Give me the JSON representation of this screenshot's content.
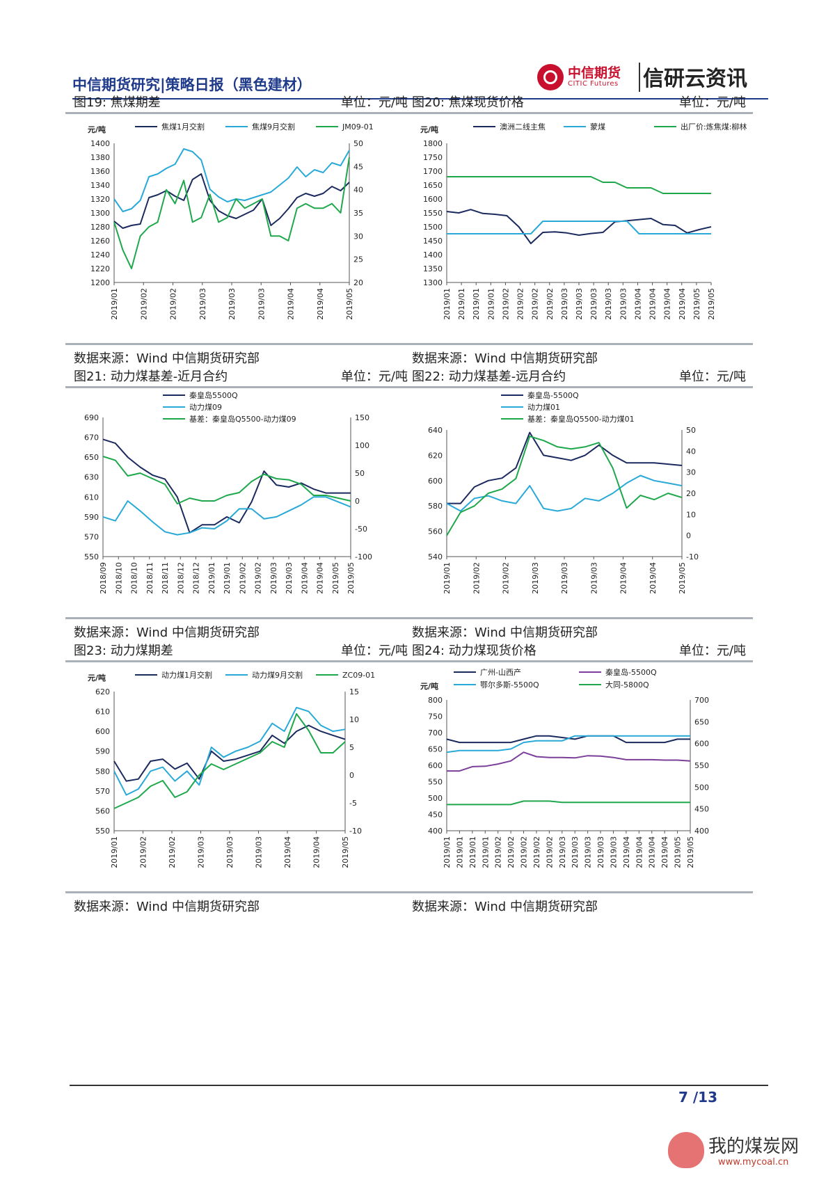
{
  "header": {
    "title": "中信期货研究|策略日报（黑色建材）",
    "logo_cn": "中信期货",
    "logo_en": "CITIC Futures",
    "brand": "信研云资讯"
  },
  "panels": [
    {
      "title": "图19: 焦煤期差",
      "unit": "单位：元/吨",
      "source": "数据来源：Wind  中信期货研究部"
    },
    {
      "title": "图20: 焦煤现货价格",
      "unit": "单位：元/吨",
      "source": "数据来源：Wind  中信期货研究部"
    },
    {
      "title": "图21: 动力煤基差-近月合约",
      "unit": "单位：元/吨",
      "source": "数据来源：Wind  中信期货研究部"
    },
    {
      "title": "图22: 动力煤基差-远月合约",
      "unit": "单位：元/吨",
      "source": "数据来源：Wind  中信期货研究部"
    },
    {
      "title": "图23: 动力煤期差",
      "unit": "单位：元/吨",
      "source": "数据来源：Wind  中信期货研究部"
    },
    {
      "title": "图24: 动力煤现货价格",
      "unit": "单位：元/吨",
      "source": "数据来源：Wind  中信期货研究部"
    }
  ],
  "colors": {
    "navy": "#1b2a5e",
    "cyan": "#29a9d8",
    "green": "#1ea84b",
    "purple": "#7b3f9a"
  },
  "chart_data": [
    {
      "type": "line",
      "yunit": "元/吨",
      "left_axis": {
        "min": 1200,
        "max": 1400,
        "ticks": [
          1200,
          1220,
          1240,
          1260,
          1280,
          1300,
          1320,
          1340,
          1360,
          1380,
          1400
        ]
      },
      "right_axis": {
        "min": 20,
        "max": 50,
        "ticks": [
          20,
          25,
          30,
          35,
          40,
          45,
          50
        ]
      },
      "x_labels": [
        "2019/01",
        "2019/02",
        "2019/02",
        "2019/03",
        "2019/03",
        "2019/03",
        "2019/04",
        "2019/04",
        "2019/05"
      ],
      "series": [
        {
          "name": "焦煤1月交割",
          "color": "navy",
          "axis": "left",
          "values": [
            1288,
            1278,
            1282,
            1284,
            1322,
            1326,
            1332,
            1324,
            1318,
            1348,
            1356,
            1318,
            1303,
            1296,
            1292,
            1298,
            1304,
            1320,
            1282,
            1292,
            1306,
            1322,
            1328,
            1324,
            1328,
            1338,
            1332,
            1344
          ]
        },
        {
          "name": "焦煤9月交割",
          "color": "cyan",
          "axis": "left",
          "values": [
            1320,
            1302,
            1306,
            1318,
            1352,
            1356,
            1364,
            1370,
            1392,
            1388,
            1376,
            1334,
            1323,
            1316,
            1320,
            1318,
            1322,
            1326,
            1330,
            1340,
            1350,
            1366,
            1352,
            1362,
            1358,
            1372,
            1368,
            1390
          ]
        },
        {
          "name": "JM09-01",
          "color": "green",
          "axis": "right",
          "values": [
            33,
            27,
            23,
            30,
            32,
            33,
            40,
            37,
            42,
            33,
            34,
            39,
            33,
            34,
            38,
            36,
            37,
            38,
            30,
            30,
            29,
            36,
            37,
            36,
            36,
            37,
            35,
            47
          ]
        }
      ]
    },
    {
      "type": "line",
      "yunit": "元/吨",
      "left_axis": {
        "min": 1300,
        "max": 1800,
        "ticks": [
          1300,
          1350,
          1400,
          1450,
          1500,
          1550,
          1600,
          1650,
          1700,
          1750,
          1800
        ]
      },
      "x_labels": [
        "2019/01",
        "2019/01",
        "2019/01",
        "2019/01",
        "2019/02",
        "2019/02",
        "2019/02",
        "2019/02",
        "2019/03",
        "2019/03",
        "2019/03",
        "2019/03",
        "2019/03",
        "2019/04",
        "2019/04",
        "2019/04",
        "2019/04",
        "2019/05",
        "2019/05"
      ],
      "series": [
        {
          "name": "澳洲二线主焦",
          "color": "navy",
          "values": [
            1555,
            1550,
            1562,
            1548,
            1545,
            1540,
            1500,
            1440,
            1480,
            1482,
            1478,
            1470,
            1476,
            1480,
            1518,
            1522,
            1526,
            1530,
            1508,
            1505,
            1478,
            1490,
            1500
          ]
        },
        {
          "name": "蒙煤",
          "color": "cyan",
          "values": [
            1475,
            1475,
            1475,
            1475,
            1475,
            1475,
            1475,
            1475,
            1520,
            1520,
            1520,
            1520,
            1520,
            1520,
            1520,
            1520,
            1475,
            1475,
            1475,
            1475,
            1475,
            1475,
            1475
          ]
        },
        {
          "name": "出厂价:炼焦煤:柳林",
          "color": "green",
          "values": [
            1680,
            1680,
            1680,
            1680,
            1680,
            1680,
            1680,
            1680,
            1680,
            1680,
            1680,
            1680,
            1680,
            1660,
            1660,
            1640,
            1640,
            1640,
            1620,
            1620,
            1620,
            1620,
            1620
          ]
        }
      ]
    },
    {
      "type": "line",
      "left_axis": {
        "min": 550,
        "max": 690,
        "ticks": [
          550,
          570,
          590,
          610,
          630,
          650,
          670,
          690
        ]
      },
      "right_axis": {
        "min": -100,
        "max": 150,
        "ticks": [
          -100,
          -50,
          0,
          50,
          100,
          150
        ]
      },
      "x_labels": [
        "2018/09",
        "2018/10",
        "2018/10",
        "2018/11",
        "2018/11",
        "2018/12",
        "2018/12",
        "2019/01",
        "2019/01",
        "2019/02",
        "2019/02",
        "2019/03",
        "2019/03",
        "2019/04",
        "2019/04",
        "2019/05",
        "2019/05"
      ],
      "series": [
        {
          "name": "秦皇岛5500Q",
          "color": "navy",
          "axis": "left",
          "values": [
            668,
            664,
            650,
            640,
            632,
            628,
            610,
            574,
            582,
            582,
            590,
            584,
            605,
            636,
            622,
            620,
            624,
            618,
            614,
            614,
            614
          ]
        },
        {
          "name": "动力煤09",
          "color": "cyan",
          "axis": "left",
          "values": [
            590,
            586,
            606,
            596,
            585,
            575,
            572,
            574,
            579,
            578,
            586,
            598,
            598,
            588,
            590,
            596,
            602,
            610,
            610,
            605,
            600
          ]
        },
        {
          "name": "基差：秦皇岛Q5500-动力煤09",
          "color": "green",
          "axis": "right",
          "values": [
            80,
            73,
            45,
            50,
            40,
            30,
            -5,
            5,
            0,
            0,
            10,
            15,
            35,
            48,
            40,
            38,
            30,
            10,
            10,
            5,
            0
          ]
        }
      ]
    },
    {
      "type": "line",
      "left_axis": {
        "min": 540,
        "max": 640,
        "ticks": [
          540,
          560,
          580,
          600,
          620,
          640
        ]
      },
      "right_axis": {
        "min": -10,
        "max": 50,
        "ticks": [
          -10,
          0,
          10,
          20,
          30,
          40,
          50
        ]
      },
      "x_labels": [
        "2019/01",
        "2019/02",
        "2019/02",
        "2019/03",
        "2019/03",
        "2019/03",
        "2019/04",
        "2019/04",
        "2019/05"
      ],
      "series": [
        {
          "name": "秦皇岛-5500Q",
          "color": "navy",
          "axis": "left",
          "values": [
            582,
            582,
            595,
            600,
            602,
            610,
            638,
            620,
            618,
            616,
            620,
            628,
            620,
            614,
            614,
            614,
            613,
            612
          ]
        },
        {
          "name": "动力煤01",
          "color": "cyan",
          "axis": "left",
          "values": [
            582,
            576,
            586,
            588,
            584,
            582,
            596,
            578,
            576,
            578,
            586,
            584,
            590,
            598,
            604,
            600,
            598,
            596
          ]
        },
        {
          "name": "基差：秦皇岛Q5500-动力煤01",
          "color": "green",
          "axis": "right",
          "values": [
            0,
            11,
            14,
            20,
            22,
            27,
            47,
            45,
            42,
            41,
            42,
            44,
            32,
            13,
            19,
            17,
            20,
            18
          ]
        }
      ]
    },
    {
      "type": "line",
      "yunit": "元/吨",
      "left_axis": {
        "min": 550,
        "max": 620,
        "ticks": [
          550,
          560,
          570,
          580,
          590,
          600,
          610,
          620
        ]
      },
      "right_axis": {
        "min": -10,
        "max": 15,
        "ticks": [
          -10,
          -5,
          0,
          5,
          10,
          15
        ]
      },
      "x_labels": [
        "2019/01",
        "2019/02",
        "2019/02",
        "2019/03",
        "2019/03",
        "2019/03",
        "2019/04",
        "2019/04",
        "2019/05"
      ],
      "series": [
        {
          "name": "动力煤1月交割",
          "color": "navy",
          "axis": "left",
          "values": [
            585,
            575,
            576,
            585,
            586,
            581,
            584,
            576,
            590,
            585,
            586,
            588,
            590,
            598,
            594,
            600,
            603,
            600,
            598,
            596
          ]
        },
        {
          "name": "动力煤9月交割",
          "color": "cyan",
          "axis": "left",
          "values": [
            580,
            568,
            571,
            580,
            582,
            575,
            580,
            573,
            592,
            587,
            590,
            592,
            595,
            604,
            600,
            612,
            610,
            603,
            600,
            601
          ]
        },
        {
          "name": "ZC09-01",
          "color": "green",
          "axis": "right",
          "values": [
            -6,
            -5,
            -4,
            -2,
            -1,
            -4,
            -3,
            0,
            2,
            1,
            2,
            3,
            4,
            6,
            5,
            11,
            8,
            4,
            4,
            6
          ]
        }
      ]
    },
    {
      "type": "line",
      "yunit": "元/吨",
      "left_axis": {
        "min": 400,
        "max": 800,
        "ticks": [
          400,
          450,
          500,
          550,
          600,
          650,
          700,
          750,
          800
        ]
      },
      "right_axis": {
        "min": 400,
        "max": 700,
        "ticks": [
          400,
          450,
          500,
          550,
          600,
          650,
          700
        ]
      },
      "x_labels": [
        "2019/01",
        "2019/01",
        "2019/01",
        "2019/01",
        "2019/02",
        "2019/02",
        "2019/02",
        "2019/02",
        "2019/02",
        "2019/03",
        "2019/03",
        "2019/03",
        "2019/03",
        "2019/03",
        "2019/04",
        "2019/04",
        "2019/04",
        "2019/04",
        "2019/05",
        "2019/05"
      ],
      "series": [
        {
          "name": "广州-山西产",
          "color": "navy",
          "axis": "left",
          "values": [
            680,
            670,
            670,
            670,
            670,
            670,
            680,
            690,
            690,
            685,
            680,
            690,
            690,
            690,
            670,
            670,
            670,
            670,
            680,
            680
          ]
        },
        {
          "name": "秦皇岛-5500Q",
          "color": "purple",
          "axis": "right",
          "values": [
            537,
            537,
            547,
            548,
            553,
            560,
            580,
            570,
            568,
            568,
            567,
            572,
            571,
            568,
            563,
            563,
            563,
            562,
            562,
            560
          ]
        },
        {
          "name": "鄂尔多斯-5500Q",
          "color": "cyan",
          "axis": "left",
          "values": [
            640,
            645,
            645,
            645,
            645,
            650,
            670,
            675,
            675,
            675,
            690,
            690,
            690,
            690,
            690,
            690,
            690,
            690,
            690,
            690
          ]
        },
        {
          "name": "大同-5800Q",
          "color": "green",
          "axis": "right",
          "values": [
            460,
            460,
            460,
            460,
            460,
            460,
            468,
            468,
            468,
            465,
            465,
            465,
            465,
            465,
            465,
            465,
            465,
            465,
            465,
            465
          ]
        }
      ]
    }
  ],
  "footer": {
    "page": "7 /13",
    "watermark_cn": "我的煤炭网",
    "watermark_url": "www.mycoal.cn"
  }
}
